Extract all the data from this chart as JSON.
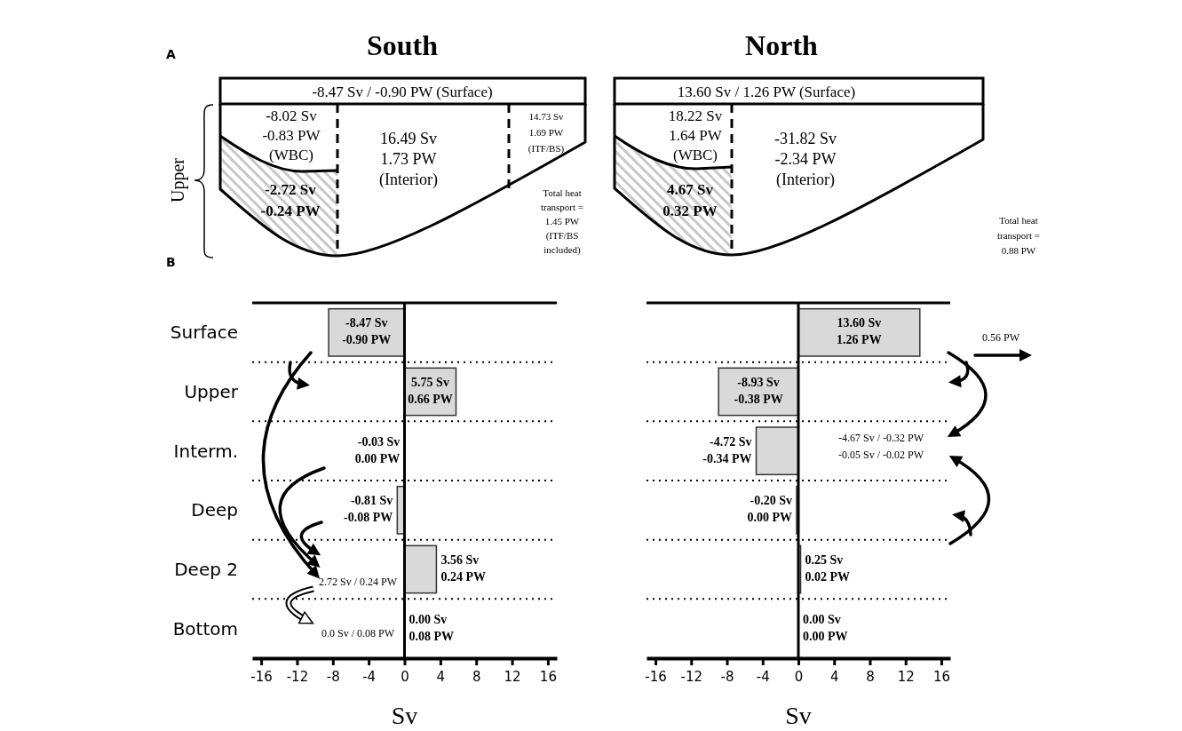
{
  "chart_data": [
    {
      "type": "other",
      "title": "South",
      "annotations": [
        "A",
        "Upper",
        "-8.47 Sv / -0.90 PW (Surface)",
        "-8.02 Sv\n-0.83 PW\n(WBC)",
        "16.49 Sv\n1.73 PW\n(Interior)",
        "14.73 Sv\n1.69 PW\n(ITF/BS)",
        "-2.72 Sv\n-0.24 PW",
        "Total heat\ntransport =\n1.45 PW\n(ITF/BS\nincluded)"
      ]
    },
    {
      "type": "other",
      "title": "North",
      "annotations": [
        "13.60 Sv / 1.26 PW (Surface)",
        "18.22 Sv\n1.64 PW\n(WBC)",
        "-31.82 Sv\n-2.34 PW\n(Interior)",
        "4.67 Sv\n0.32 PW",
        "Total heat\ntransport =\n0.88 PW"
      ]
    },
    {
      "type": "bar",
      "orientation": "horizontal",
      "categories": [
        "Surface",
        "Upper",
        "Interm.",
        "Deep",
        "Deep 2",
        "Bottom"
      ],
      "values": [
        -8.47,
        5.75,
        -0.03,
        -0.81,
        3.56,
        0.0
      ],
      "color": "#d9d9d9",
      "value_labels": [
        "-8.47 Sv\n-0.90 PW",
        "5.75 Sv\n0.66 PW",
        "-0.03 Sv\n0.00 PW",
        "-0.81 Sv\n-0.08 PW",
        "3.56 Sv\n0.24 PW",
        "0.00 Sv\n0.08 PW"
      ],
      "xlim": [
        -17,
        17
      ],
      "xticks": [
        -16,
        -12,
        -8,
        -4,
        0,
        4,
        8,
        12,
        16
      ],
      "xlabel": "Sv",
      "grid": "y",
      "annotations": [
        "B",
        "2.72 Sv / 0.24 PW",
        "0.0 Sv / 0.08 PW"
      ]
    },
    {
      "type": "bar",
      "orientation": "horizontal",
      "categories": [
        null,
        null,
        null,
        null,
        null,
        null
      ],
      "values": [
        13.6,
        -8.93,
        -4.72,
        -0.2,
        0.25,
        0.0
      ],
      "color": "#d9d9d9",
      "value_labels": [
        "13.60 Sv\n1.26 PW",
        "-8.93 Sv\n-0.38 PW",
        "-4.72 Sv\n-0.34 PW",
        "-0.20 Sv\n0.00 PW",
        "0.25 Sv\n0.02 PW",
        "0.00 Sv\n0.00 PW"
      ],
      "xlim": [
        -17,
        17
      ],
      "xticks": [
        -16,
        -12,
        -8,
        -4,
        0,
        4,
        8,
        12,
        16
      ],
      "xlabel": "Sv",
      "grid": "y",
      "annotations": [
        "0.56 PW",
        "-4.67 Sv / -0.32 PW",
        "-0.05 Sv / -0.02 PW"
      ]
    }
  ]
}
